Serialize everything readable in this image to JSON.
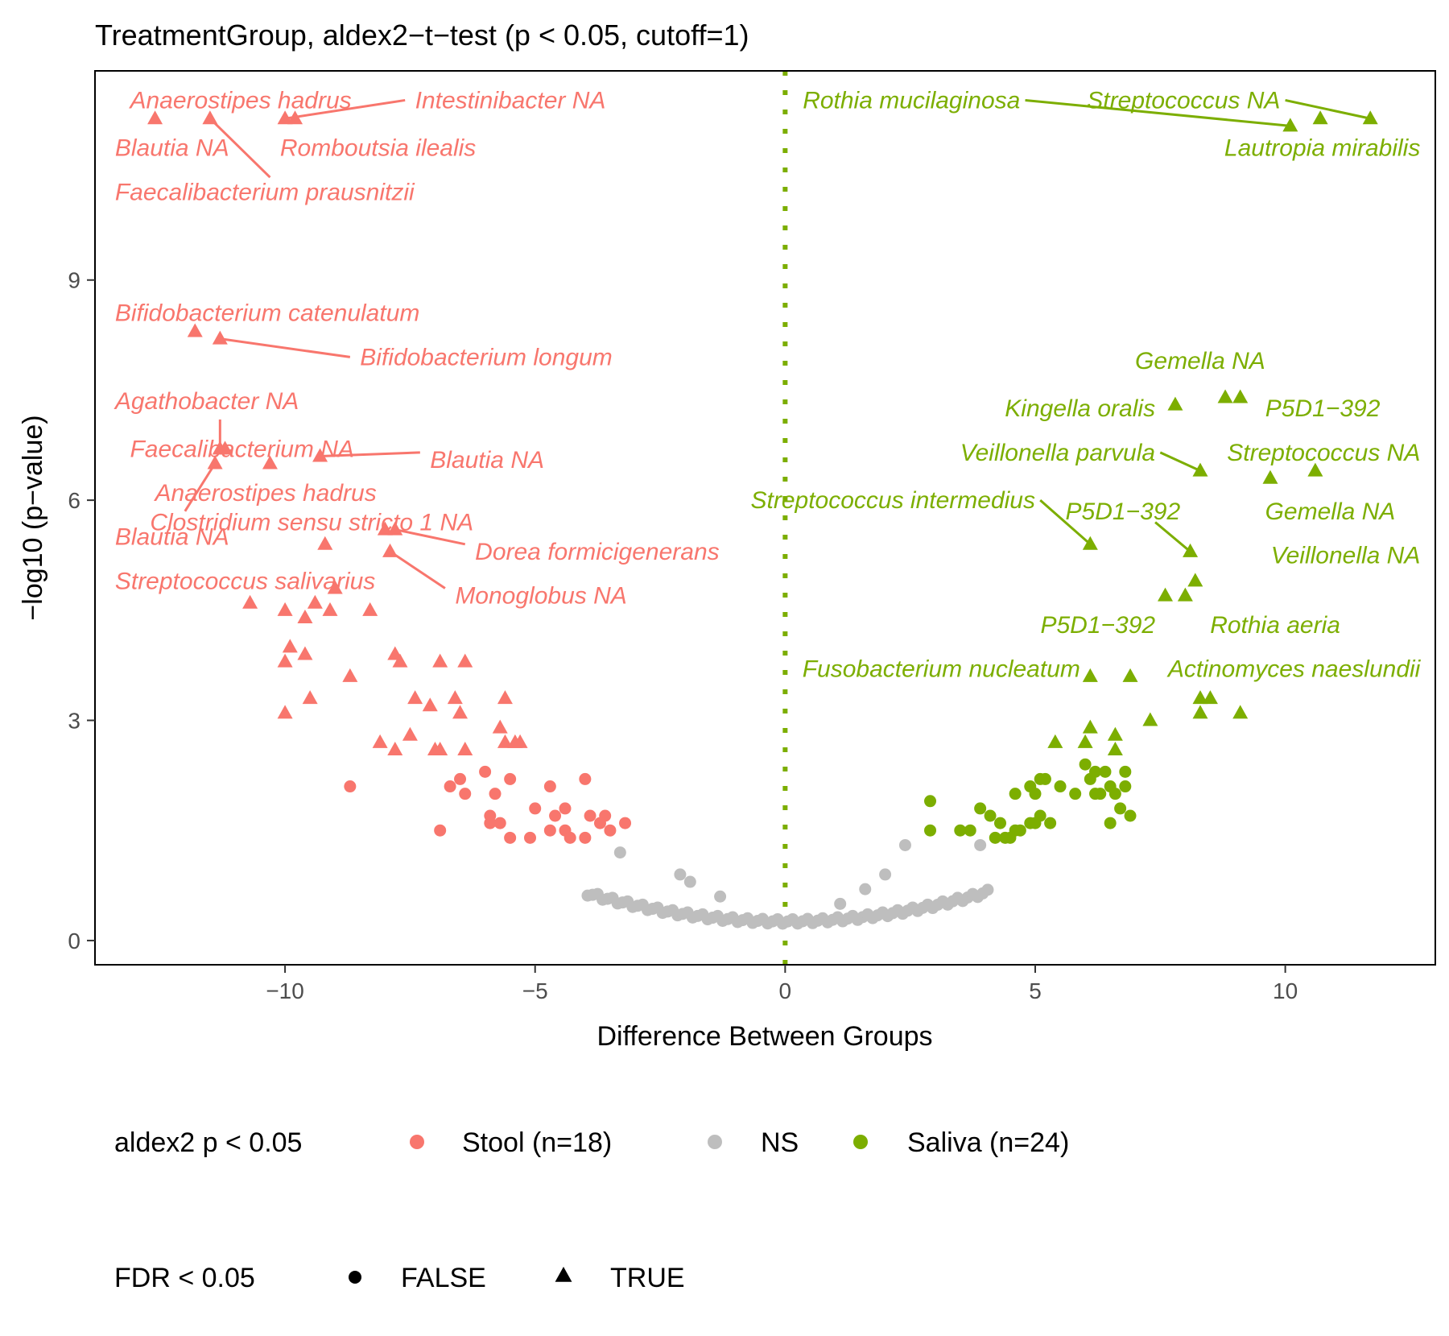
{
  "chart_data": {
    "type": "scatter",
    "title": "TreatmentGroup, aldex2−t−test (p < 0.05, cutoff=1)",
    "xlabel": "Difference Between Groups",
    "ylabel": "−log10 (p−value)",
    "xlim": [
      -13.8,
      13.0
    ],
    "ylim": [
      -0.33,
      11.85
    ],
    "x_ticks": [
      -10,
      -5,
      0,
      5,
      10
    ],
    "x_tick_labels": [
      "−10",
      "−5",
      "0",
      "5",
      "10"
    ],
    "y_ticks": [
      0,
      3,
      6,
      9
    ],
    "y_tick_labels": [
      "0",
      "3",
      "6",
      "9"
    ],
    "grid": false,
    "vline": {
      "x": 0,
      "style": "dotted",
      "color": "#7CAE00"
    },
    "colors": {
      "Stool": "#F8766D",
      "NS": "#BEBEBE",
      "Saliva": "#7CAE00"
    },
    "legend": {
      "placement": "bottom",
      "color_title": "aldex2 p < 0.05",
      "color_entries": [
        {
          "key": "Stool",
          "label": "Stool (n=18)"
        },
        {
          "key": "NS",
          "label": "NS"
        },
        {
          "key": "Saliva",
          "label": "Saliva (n=24)"
        }
      ],
      "shape_title": "FDR < 0.05",
      "shape_entries": [
        {
          "shape": "circle",
          "label": "FALSE"
        },
        {
          "shape": "triangle",
          "label": "TRUE"
        }
      ]
    },
    "series": [
      {
        "name": "Stool",
        "fdr": true,
        "points": [
          [
            -12.6,
            11.2
          ],
          [
            -11.5,
            11.2
          ],
          [
            -10.0,
            11.2
          ],
          [
            -9.8,
            11.2
          ],
          [
            -11.8,
            8.3
          ],
          [
            -11.3,
            8.2
          ],
          [
            -11.3,
            6.7
          ],
          [
            -11.2,
            6.7
          ],
          [
            -11.4,
            6.5
          ],
          [
            -10.3,
            6.5
          ],
          [
            -9.3,
            6.6
          ],
          [
            -8.0,
            5.6
          ],
          [
            -7.8,
            5.6
          ],
          [
            -9.2,
            5.4
          ],
          [
            -7.9,
            5.3
          ],
          [
            -9.0,
            4.8
          ],
          [
            -9.4,
            4.6
          ],
          [
            -9.1,
            4.5
          ],
          [
            -9.6,
            4.4
          ],
          [
            -8.3,
            4.5
          ],
          [
            -10.7,
            4.6
          ],
          [
            -10.0,
            4.5
          ],
          [
            -9.9,
            4.0
          ],
          [
            -10.0,
            3.8
          ],
          [
            -9.6,
            3.9
          ],
          [
            -8.7,
            3.6
          ],
          [
            -7.8,
            3.9
          ],
          [
            -7.7,
            3.8
          ],
          [
            -6.9,
            3.8
          ],
          [
            -6.4,
            3.8
          ],
          [
            -9.5,
            3.3
          ],
          [
            -10.0,
            3.1
          ],
          [
            -7.4,
            3.3
          ],
          [
            -7.1,
            3.2
          ],
          [
            -6.6,
            3.3
          ],
          [
            -6.5,
            3.1
          ],
          [
            -5.6,
            3.3
          ],
          [
            -8.1,
            2.7
          ],
          [
            -7.8,
            2.6
          ],
          [
            -7.5,
            2.8
          ],
          [
            -7.0,
            2.6
          ],
          [
            -6.9,
            2.6
          ],
          [
            -6.4,
            2.6
          ],
          [
            -5.7,
            2.9
          ],
          [
            -5.6,
            2.7
          ],
          [
            -5.4,
            2.7
          ],
          [
            -5.3,
            2.7
          ]
        ]
      },
      {
        "name": "Stool",
        "fdr": false,
        "points": [
          [
            -8.7,
            2.1
          ],
          [
            -6.7,
            2.1
          ],
          [
            -6.5,
            2.2
          ],
          [
            -6.4,
            2.0
          ],
          [
            -6.0,
            2.3
          ],
          [
            -5.8,
            2.0
          ],
          [
            -5.5,
            2.2
          ],
          [
            -4.7,
            2.1
          ],
          [
            -4.0,
            2.2
          ],
          [
            -5.0,
            1.8
          ],
          [
            -4.6,
            1.7
          ],
          [
            -4.4,
            1.8
          ],
          [
            -3.9,
            1.7
          ],
          [
            -5.9,
            1.7
          ],
          [
            -5.7,
            1.6
          ],
          [
            -5.9,
            1.6
          ],
          [
            -4.7,
            1.5
          ],
          [
            -4.4,
            1.5
          ],
          [
            -3.6,
            1.7
          ],
          [
            -3.2,
            1.6
          ],
          [
            -5.5,
            1.4
          ],
          [
            -5.1,
            1.4
          ],
          [
            -4.0,
            1.4
          ],
          [
            -3.7,
            1.6
          ],
          [
            -3.5,
            1.5
          ],
          [
            -6.9,
            1.5
          ],
          [
            -4.3,
            1.4
          ]
        ]
      },
      {
        "name": "Saliva",
        "fdr": true,
        "points": [
          [
            10.1,
            11.1
          ],
          [
            10.7,
            11.2
          ],
          [
            11.7,
            11.2
          ],
          [
            7.8,
            7.3
          ],
          [
            8.8,
            7.4
          ],
          [
            9.1,
            7.4
          ],
          [
            8.3,
            6.4
          ],
          [
            9.7,
            6.3
          ],
          [
            10.6,
            6.4
          ],
          [
            6.1,
            5.4
          ],
          [
            8.1,
            5.3
          ],
          [
            8.2,
            4.9
          ],
          [
            7.6,
            4.7
          ],
          [
            8.0,
            4.7
          ],
          [
            6.1,
            3.6
          ],
          [
            6.9,
            3.6
          ],
          [
            8.3,
            3.3
          ],
          [
            8.5,
            3.3
          ],
          [
            8.3,
            3.1
          ],
          [
            9.1,
            3.1
          ],
          [
            7.3,
            3.0
          ],
          [
            5.4,
            2.7
          ],
          [
            6.0,
            2.7
          ],
          [
            6.1,
            2.9
          ],
          [
            6.6,
            2.8
          ],
          [
            6.6,
            2.6
          ]
        ]
      },
      {
        "name": "Saliva",
        "fdr": false,
        "points": [
          [
            2.9,
            1.9
          ],
          [
            2.9,
            1.5
          ],
          [
            3.5,
            1.5
          ],
          [
            3.9,
            1.8
          ],
          [
            4.1,
            1.7
          ],
          [
            4.2,
            1.4
          ],
          [
            4.4,
            1.4
          ],
          [
            4.6,
            2.0
          ],
          [
            4.6,
            1.5
          ],
          [
            4.9,
            2.1
          ],
          [
            5.0,
            2.0
          ],
          [
            5.1,
            2.2
          ],
          [
            5.2,
            2.2
          ],
          [
            5.0,
            1.6
          ],
          [
            5.1,
            1.7
          ],
          [
            5.3,
            1.6
          ],
          [
            5.5,
            2.1
          ],
          [
            4.9,
            1.6
          ],
          [
            4.5,
            1.4
          ],
          [
            4.7,
            1.5
          ],
          [
            4.3,
            1.6
          ],
          [
            5.8,
            2.0
          ],
          [
            6.0,
            2.4
          ],
          [
            6.1,
            2.2
          ],
          [
            6.2,
            2.3
          ],
          [
            6.3,
            2.0
          ],
          [
            6.4,
            2.3
          ],
          [
            6.5,
            2.1
          ],
          [
            6.5,
            1.6
          ],
          [
            6.6,
            2.0
          ],
          [
            6.7,
            1.8
          ],
          [
            6.8,
            2.3
          ],
          [
            6.8,
            2.1
          ],
          [
            6.9,
            1.7
          ],
          [
            6.2,
            2.0
          ],
          [
            3.7,
            1.5
          ]
        ]
      }
    ],
    "ns_curve": {
      "a": 0.0245,
      "b": 0.26,
      "x": [
        -3.95,
        -3.85,
        -3.75,
        -3.65,
        -3.55,
        -3.45,
        -3.35,
        -3.25,
        -3.15,
        -3.05,
        -2.95,
        -2.85,
        -2.75,
        -2.65,
        -2.55,
        -2.45,
        -2.35,
        -2.25,
        -2.15,
        -2.05,
        -1.95,
        -1.85,
        -1.75,
        -1.65,
        -1.55,
        -1.45,
        -1.35,
        -1.25,
        -1.15,
        -1.05,
        -0.95,
        -0.85,
        -0.75,
        -0.65,
        -0.55,
        -0.45,
        -0.35,
        -0.25,
        -0.15,
        -0.05,
        0.05,
        0.15,
        0.25,
        0.35,
        0.45,
        0.55,
        0.65,
        0.75,
        0.85,
        0.95,
        1.05,
        1.15,
        1.25,
        1.35,
        1.45,
        1.55,
        1.65,
        1.75,
        1.85,
        1.95,
        2.05,
        2.15,
        2.25,
        2.35,
        2.45,
        2.55,
        2.65,
        2.75,
        2.85,
        2.95,
        3.05,
        3.15,
        3.25,
        3.35,
        3.45,
        3.55,
        3.65,
        3.75,
        3.85,
        3.95,
        4.05
      ],
      "extra_points": [
        [
          2.4,
          1.3
        ],
        [
          3.9,
          1.3
        ],
        [
          2.0,
          0.9
        ],
        [
          -3.3,
          1.2
        ],
        [
          -2.1,
          0.9
        ],
        [
          -1.9,
          0.8
        ],
        [
          1.6,
          0.7
        ],
        [
          -1.3,
          0.6
        ],
        [
          1.1,
          0.5
        ]
      ]
    },
    "labels": [
      {
        "text": "Anaerostipes hadrus",
        "color": "Stool",
        "lx": -13.1,
        "ly": 11.45,
        "anchor": "start",
        "px": -11.5,
        "py": 11.2,
        "line": false
      },
      {
        "text": "Intestinibacter NA",
        "color": "Stool",
        "lx": -7.4,
        "ly": 11.45,
        "anchor": "start",
        "px": -10.0,
        "py": 11.2,
        "line": true,
        "lineFromX": -7.6,
        "lineFromY": 11.45
      },
      {
        "text": "Blautia NA",
        "color": "Stool",
        "lx": -13.4,
        "ly": 10.8,
        "anchor": "start",
        "px": -12.6,
        "py": 11.2,
        "line": false
      },
      {
        "text": "Romboutsia ilealis",
        "color": "Stool",
        "lx": -10.1,
        "ly": 10.8,
        "anchor": "start",
        "px": -9.8,
        "py": 11.2,
        "line": false
      },
      {
        "text": "Faecalibacterium prausnitzii",
        "color": "Stool",
        "lx": -13.4,
        "ly": 10.2,
        "anchor": "start",
        "px": -11.5,
        "py": 11.2,
        "line": true,
        "lineFromX": -10.3,
        "lineFromY": 10.4
      },
      {
        "text": "Bifidobacterium catenulatum",
        "color": "Stool",
        "lx": -13.4,
        "ly": 8.55,
        "anchor": "start",
        "px": -11.8,
        "py": 8.3,
        "line": false
      },
      {
        "text": "Bifidobacterium longum",
        "color": "Stool",
        "lx": -8.5,
        "ly": 7.95,
        "anchor": "start",
        "px": -11.3,
        "py": 8.2,
        "line": true,
        "lineFromX": -8.7,
        "lineFromY": 7.95
      },
      {
        "text": "Agathobacter NA",
        "color": "Stool",
        "lx": -13.4,
        "ly": 7.35,
        "anchor": "start",
        "px": -11.3,
        "py": 6.7,
        "line": true,
        "lineFromX": -11.3,
        "lineFromY": 7.1
      },
      {
        "text": "Faecalibacterium NA",
        "color": "Stool",
        "lx": -13.1,
        "ly": 6.7,
        "anchor": "start",
        "px": -11.2,
        "py": 6.7,
        "line": false
      },
      {
        "text": "Blautia NA",
        "color": "Stool",
        "lx": -7.1,
        "ly": 6.55,
        "anchor": "start",
        "px": -9.3,
        "py": 6.6,
        "line": true,
        "lineFromX": -7.3,
        "lineFromY": 6.65
      },
      {
        "text": "Anaerostipes hadrus",
        "color": "Stool",
        "lx": -12.6,
        "ly": 6.1,
        "anchor": "start",
        "px": -10.3,
        "py": 6.5,
        "line": false
      },
      {
        "text": "Clostridium sensu stricto 1 NA",
        "color": "Stool",
        "lx": -12.7,
        "ly": 5.7,
        "anchor": "start",
        "px": -11.4,
        "py": 6.5,
        "line": true,
        "lineFromX": -12.0,
        "lineFromY": 5.85
      },
      {
        "text": "Blautia NA",
        "color": "Stool",
        "lx": -13.4,
        "ly": 5.5,
        "anchor": "start",
        "px": -11.4,
        "py": 6.5,
        "line": false
      },
      {
        "text": "Dorea formicigenerans",
        "color": "Stool",
        "lx": -6.2,
        "ly": 5.3,
        "anchor": "start",
        "px": -7.8,
        "py": 5.6,
        "line": true,
        "lineFromX": -6.4,
        "lineFromY": 5.4
      },
      {
        "text": "Streptococcus salivarius",
        "color": "Stool",
        "lx": -13.4,
        "ly": 4.9,
        "anchor": "start",
        "px": -9.2,
        "py": 5.4,
        "line": false
      },
      {
        "text": "Monoglobus NA",
        "color": "Stool",
        "lx": -6.6,
        "ly": 4.7,
        "anchor": "start",
        "px": -7.9,
        "py": 5.3,
        "line": true,
        "lineFromX": -6.8,
        "lineFromY": 4.8
      },
      {
        "text": "Rothia mucilaginosa",
        "color": "Saliva",
        "lx": 4.7,
        "ly": 11.45,
        "anchor": "end",
        "px": 10.1,
        "py": 11.1,
        "line": true,
        "lineFromX": 4.8,
        "lineFromY": 11.45
      },
      {
        "text": "Streptococcus NA",
        "color": "Saliva",
        "lx": 9.9,
        "ly": 11.45,
        "anchor": "end",
        "px": 11.7,
        "py": 11.2,
        "line": true,
        "lineFromX": 10.0,
        "lineFromY": 11.45
      },
      {
        "text": "Lautropia mirabilis",
        "color": "Saliva",
        "lx": 12.7,
        "ly": 10.8,
        "anchor": "end",
        "px": 10.7,
        "py": 11.2,
        "line": false
      },
      {
        "text": "Gemella NA",
        "color": "Saliva",
        "lx": 9.6,
        "ly": 7.9,
        "anchor": "end",
        "px": 8.8,
        "py": 7.4,
        "line": false
      },
      {
        "text": "Kingella oralis",
        "color": "Saliva",
        "lx": 7.4,
        "ly": 7.25,
        "anchor": "end",
        "px": 7.8,
        "py": 7.3,
        "line": false
      },
      {
        "text": "P5D1−392",
        "color": "Saliva",
        "lx": 9.6,
        "ly": 7.25,
        "anchor": "start",
        "px": 9.1,
        "py": 7.4,
        "line": false
      },
      {
        "text": "Veillonella parvula",
        "color": "Saliva",
        "lx": 7.4,
        "ly": 6.65,
        "anchor": "end",
        "px": 8.3,
        "py": 6.4,
        "line": true,
        "lineFromX": 7.5,
        "lineFromY": 6.65
      },
      {
        "text": "Streptococcus NA",
        "color": "Saliva",
        "lx": 12.7,
        "ly": 6.65,
        "anchor": "end",
        "px": 10.6,
        "py": 6.4,
        "line": false
      },
      {
        "text": "Streptococcus intermedius",
        "color": "Saliva",
        "lx": 5.0,
        "ly": 6.0,
        "anchor": "end",
        "px": 6.1,
        "py": 5.4,
        "line": true,
        "lineFromX": 5.1,
        "lineFromY": 6.0
      },
      {
        "text": "P5D1−392",
        "color": "Saliva",
        "lx": 7.9,
        "ly": 5.85,
        "anchor": "end",
        "px": 8.1,
        "py": 5.3,
        "line": true,
        "lineFromX": 7.4,
        "lineFromY": 5.7
      },
      {
        "text": "Gemella NA",
        "color": "Saliva",
        "lx": 12.2,
        "ly": 5.85,
        "anchor": "end",
        "px": 9.7,
        "py": 6.3,
        "line": false
      },
      {
        "text": "Veillonella NA",
        "color": "Saliva",
        "lx": 12.7,
        "ly": 5.25,
        "anchor": "end",
        "px": 8.2,
        "py": 4.9,
        "line": false
      },
      {
        "text": "P5D1−392",
        "color": "Saliva",
        "lx": 7.4,
        "ly": 4.3,
        "anchor": "end",
        "px": 7.6,
        "py": 4.7,
        "line": false
      },
      {
        "text": "Rothia aeria",
        "color": "Saliva",
        "lx": 11.1,
        "ly": 4.3,
        "anchor": "end",
        "px": 8.0,
        "py": 4.7,
        "line": false
      },
      {
        "text": "Fusobacterium nucleatum",
        "color": "Saliva",
        "lx": 5.9,
        "ly": 3.7,
        "anchor": "end",
        "px": 6.1,
        "py": 3.6,
        "line": false
      },
      {
        "text": "Actinomyces naeslundii",
        "color": "Saliva",
        "lx": 12.7,
        "ly": 3.7,
        "anchor": "end",
        "px": 6.9,
        "py": 3.6,
        "line": false
      }
    ]
  }
}
